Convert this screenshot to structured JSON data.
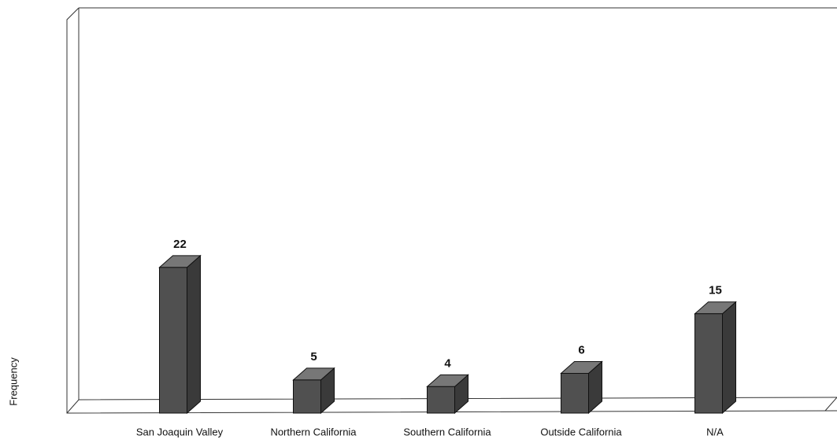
{
  "chart_data": {
    "type": "bar",
    "y_label": "Frequency",
    "categories": [
      "San Joaquin Valley",
      "Northern California",
      "Southern California",
      "Outside California",
      "N/A"
    ],
    "values": [
      22,
      5,
      4,
      6,
      15
    ],
    "color": "#505050",
    "ylim": [
      0,
      60
    ]
  }
}
